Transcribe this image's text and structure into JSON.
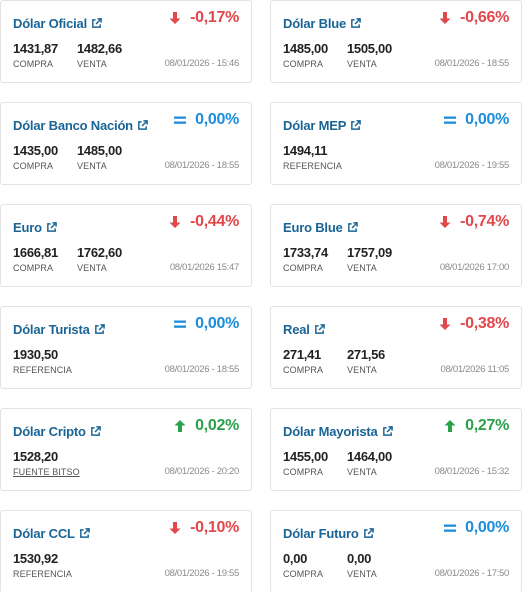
{
  "colors": {
    "title": "#1a6496",
    "down": "#e2474b",
    "up": "#2aa14b",
    "equal": "#1c8ddc"
  },
  "cards": [
    {
      "title": "Dólar Oficial",
      "trend": "down",
      "change": "-0,17%",
      "v1": "1431,87",
      "l1": "COMPRA",
      "v2": "1482,66",
      "l2": "VENTA",
      "date": "08/01/2026 - 15:46"
    },
    {
      "title": "Dólar Blue",
      "trend": "down",
      "change": "-0,66%",
      "v1": "1485,00",
      "l1": "COMPRA",
      "v2": "1505,00",
      "l2": "VENTA",
      "date": "08/01/2026 - 18:55"
    },
    {
      "title": "Dólar Banco Nación",
      "trend": "eq",
      "change": "0,00%",
      "v1": "1435,00",
      "l1": "COMPRA",
      "v2": "1485,00",
      "l2": "VENTA",
      "date": "08/01/2026 - 18:55"
    },
    {
      "title": "Dólar MEP",
      "trend": "eq",
      "change": "0,00%",
      "v1": "1494,11",
      "l1": "REFERENCIA",
      "v2": "",
      "l2": "",
      "date": "08/01/2026 - 19:55"
    },
    {
      "title": "Euro",
      "trend": "down",
      "change": "-0,44%",
      "v1": "1666,81",
      "l1": "COMPRA",
      "v2": "1762,60",
      "l2": "VENTA",
      "date": "08/01/2026 15:47"
    },
    {
      "title": "Euro Blue",
      "trend": "down",
      "change": "-0,74%",
      "v1": "1733,74",
      "l1": "COMPRA",
      "v2": "1757,09",
      "l2": "VENTA",
      "date": "08/01/2026 17:00"
    },
    {
      "title": "Dólar Turista",
      "trend": "eq",
      "change": "0,00%",
      "v1": "1930,50",
      "l1": "REFERENCIA",
      "v2": "",
      "l2": "",
      "date": "08/01/2026 - 18:55"
    },
    {
      "title": "Real",
      "trend": "down",
      "change": "-0,38%",
      "v1": "271,41",
      "l1": "COMPRA",
      "v2": "271,56",
      "l2": "VENTA",
      "date": "08/01/2026 11:05"
    },
    {
      "title": "Dólar Cripto",
      "trend": "up",
      "change": "0,02%",
      "v1": "1528,20",
      "l1": "FUENTE BITSO",
      "l1_link": true,
      "v2": "",
      "l2": "",
      "date": "08/01/2026 - 20:20"
    },
    {
      "title": "Dólar Mayorista",
      "trend": "up",
      "change": "0,27%",
      "v1": "1455,00",
      "l1": "COMPRA",
      "v2": "1464,00",
      "l2": "VENTA",
      "date": "08/01/2026 - 15:32"
    },
    {
      "title": "Dólar CCL",
      "trend": "down",
      "change": "-0,10%",
      "v1": "1530,92",
      "l1": "REFERENCIA",
      "v2": "",
      "l2": "",
      "date": "08/01/2026 - 19:55"
    },
    {
      "title": "Dólar Futuro",
      "trend": "eq",
      "change": "0,00%",
      "v1": "0,00",
      "l1": "COMPRA",
      "v2": "0,00",
      "l2": "VENTA",
      "date": "08/01/2026 - 17:50"
    }
  ]
}
